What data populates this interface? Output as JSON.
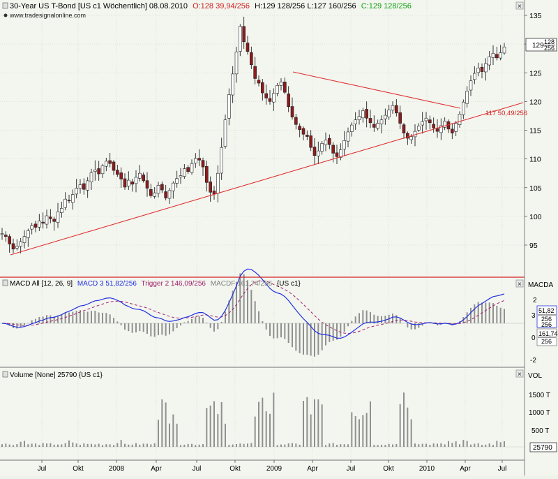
{
  "header": {
    "price_title": "30-Year US T-Bond [US c1  Wöchentlich] 08.08.2010",
    "price_ohlc_o": "O:128 39,94/256",
    "price_ohlc_hl": "H:129 128/256 L:127 160/256",
    "price_ohlc_c": "C:129 128/256",
    "watermark": "www.tradesignalonline.com"
  },
  "price_panel": {
    "axis_labels": [
      "135",
      "130",
      "125",
      "120",
      "115",
      "110",
      "105",
      "100",
      "95"
    ],
    "axis_values": [
      135,
      130,
      125,
      120,
      115,
      110,
      105,
      100,
      95
    ],
    "last_price_whole": "129",
    "last_price_num": "128",
    "last_price_den": "256",
    "trendline_label": "117 50,49/256"
  },
  "macd_panel": {
    "title": "MACD All [12, 26, 9]",
    "macd_label": "MACD 3 51,82/256",
    "trigger_label": "Trigger 2 146,09/256",
    "macdf_label": "MACDF 161,74/256",
    "instrument": "{US c1}",
    "axis_name": "MACDA",
    "axis_labels": [
      "2",
      "-2"
    ],
    "macd_tag_whole": "3",
    "macd_tag_num": "51,82",
    "macd_tag_den": "256",
    "macdf_tag_whole": "0",
    "macdf_tag_num": "161,74",
    "macdf_tag_den": "256"
  },
  "volume_panel": {
    "title": "Volume [None] 25790 {US c1}",
    "axis_name": "VOL",
    "axis_labels": [
      "1500 T",
      "1000 T",
      "500 T"
    ],
    "last_value": "25790"
  },
  "time_axis": [
    "Jul",
    "Okt",
    "2008",
    "Apr",
    "Jul",
    "Okt",
    "2009",
    "Apr",
    "Jul",
    "Okt",
    "2010",
    "Apr",
    "Jul"
  ],
  "colors": {
    "background": "#f3f5ef",
    "panel_border": "#d22020",
    "up_candle": "#b0b0b0",
    "down_candle": "#8b1c1c",
    "trendline": "#e03030",
    "macd_line": "#2030e0",
    "trigger_line": "#a0206a",
    "histogram": "#909090",
    "volume_bar": "#909090"
  },
  "chart_data": {
    "type": "candlestick",
    "frequency": "weekly",
    "ylim": [
      91,
      137
    ],
    "closes": [
      97,
      96.5,
      95.2,
      94.3,
      94.8,
      95.6,
      96.5,
      97.5,
      98.4,
      98.1,
      99.2,
      98.8,
      100.1,
      99.6,
      99.1,
      100.8,
      101.4,
      103.0,
      102.7,
      103.8,
      104.9,
      105.5,
      104.7,
      106.2,
      107.6,
      108.1,
      107.4,
      108.8,
      109.6,
      109.2,
      108.0,
      107.3,
      106.5,
      105.1,
      106.3,
      105.6,
      106.8,
      107.5,
      106.2,
      104.9,
      103.6,
      104.1,
      105.4,
      104.6,
      103.2,
      104.5,
      105.8,
      106.6,
      107.1,
      108.3,
      107.8,
      109.2,
      110.1,
      109.8,
      108.6,
      105.9,
      104.2,
      103.9,
      107.5,
      112.0,
      116.8,
      121.2,
      124.8,
      128.6,
      133.1,
      130.4,
      128.7,
      126.4,
      124.0,
      123.2,
      121.5,
      120.6,
      120.0,
      121.4,
      122.8,
      123.4,
      121.6,
      119.1,
      117.3,
      116.0,
      115.1,
      114.3,
      113.9,
      112.0,
      110.6,
      111.4,
      112.7,
      113.3,
      112.5,
      111.0,
      110.4,
      111.6,
      113.2,
      114.7,
      115.9,
      116.8,
      117.4,
      118.4,
      117.1,
      116.3,
      115.5,
      116.2,
      116.8,
      117.6,
      118.5,
      119.3,
      118.0,
      116.2,
      114.5,
      113.6,
      113.9,
      114.8,
      115.7,
      116.5,
      117.1,
      116.3,
      115.4,
      114.8,
      115.8,
      116.6,
      115.2,
      114.5,
      116.2,
      117.8,
      119.9,
      121.8,
      123.6,
      124.9,
      125.8,
      125.2,
      126.6,
      127.8,
      128.4,
      127.6,
      128.5,
      129.5
    ],
    "price_range_start": 97,
    "trendline_support_label": "117 50,49/256",
    "macd_ylim": [
      -3,
      6
    ],
    "volume_ylim": [
      0,
      2000
    ],
    "volume_unit": "T"
  }
}
